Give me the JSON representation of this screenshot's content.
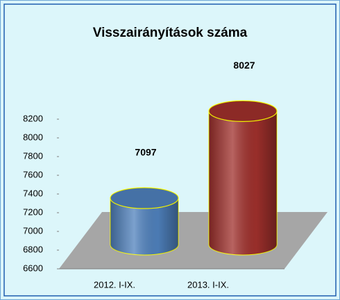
{
  "chart_data": {
    "type": "bar",
    "title": "Visszairányítások száma",
    "categories": [
      "2012. I-IX.",
      "2013. I-IX."
    ],
    "values": [
      7097,
      8027
    ],
    "colors": [
      "#4f81bd",
      "#a0302c"
    ],
    "ylim": [
      6600,
      8200
    ],
    "yticks": [
      6600,
      6800,
      7000,
      7200,
      7400,
      7600,
      7800,
      8000,
      8200
    ]
  }
}
